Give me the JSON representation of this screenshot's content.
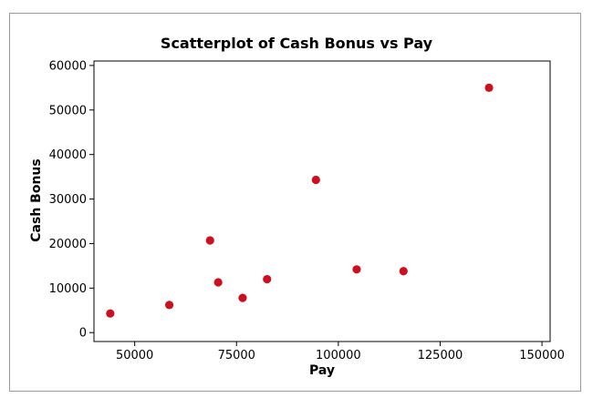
{
  "chart_data": {
    "type": "scatter",
    "title": "Scatterplot of Cash Bonus vs Pay",
    "xlabel": "Pay",
    "ylabel": "Cash Bonus",
    "xlim": [
      40000,
      152000
    ],
    "ylim": [
      -2000,
      61000
    ],
    "x_ticks": [
      50000,
      75000,
      100000,
      125000,
      150000
    ],
    "x_tick_labels": [
      "50000",
      "75000",
      "100000",
      "125000",
      "150000"
    ],
    "y_ticks": [
      0,
      10000,
      20000,
      30000,
      40000,
      50000,
      60000
    ],
    "y_tick_labels": [
      "0",
      "10000",
      "20000",
      "30000",
      "40000",
      "50000",
      "60000"
    ],
    "grid": false,
    "point_color": "#cc1020",
    "points": [
      {
        "x": 44000,
        "y": 4300
      },
      {
        "x": 58500,
        "y": 6200
      },
      {
        "x": 68500,
        "y": 20700
      },
      {
        "x": 70500,
        "y": 11300
      },
      {
        "x": 76500,
        "y": 7800
      },
      {
        "x": 82500,
        "y": 12000
      },
      {
        "x": 94500,
        "y": 34300
      },
      {
        "x": 104500,
        "y": 14200
      },
      {
        "x": 116000,
        "y": 13800
      },
      {
        "x": 137000,
        "y": 55000
      }
    ]
  }
}
